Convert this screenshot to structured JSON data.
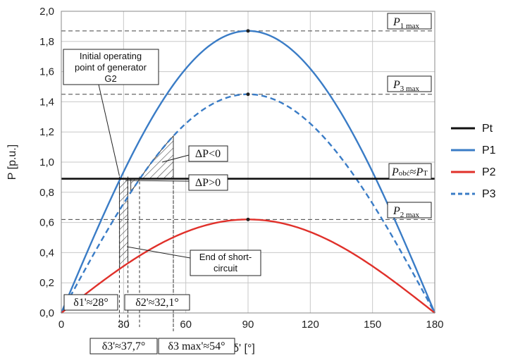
{
  "chart_data": {
    "type": "line",
    "xlabel": "δ' [°]",
    "ylabel": "P [p.u.]",
    "xlim": [
      0,
      180
    ],
    "ylim": [
      0,
      2.0
    ],
    "x_ticks": [
      "0",
      "30",
      "60",
      "90",
      "120",
      "150",
      "180"
    ],
    "y_ticks": [
      "0,0",
      "0,2",
      "0,4",
      "0,6",
      "0,8",
      "1,0",
      "1,2",
      "1,4",
      "1,6",
      "1,8",
      "2,0"
    ],
    "grid": true,
    "legend_position": "right",
    "series": [
      {
        "name": "Pt",
        "type": "constant",
        "value": 0.89,
        "color": "#111111",
        "dash": "solid"
      },
      {
        "name": "P1",
        "type": "sine",
        "amplitude": 1.87,
        "color": "#3a7cc6",
        "dash": "solid"
      },
      {
        "name": "P2",
        "type": "sine",
        "amplitude": 0.62,
        "color": "#e0302a",
        "dash": "solid"
      },
      {
        "name": "P3",
        "type": "sine",
        "amplitude": 1.45,
        "color": "#3a7cc6",
        "dash": "dashed"
      }
    ],
    "reference_levels": [
      {
        "label_main": "P",
        "label_sub": "1 max",
        "value": 1.87
      },
      {
        "label_main": "P",
        "label_sub": "3 max",
        "value": 1.45
      },
      {
        "label_main": "P",
        "label_sub": "2 max",
        "value": 0.62
      }
    ],
    "pt_label": {
      "main1": "P",
      "sub1": "obć",
      "mid": "≈",
      "main2": "P",
      "sub2": "T"
    },
    "angles": {
      "delta1": 28,
      "delta2": 32.1,
      "delta3": 37.7,
      "delta3max": 54
    },
    "annotations": {
      "initial_point": [
        "Initial operating",
        "point of generator",
        "G2"
      ],
      "end_short_circuit": [
        "End of short-",
        "circuit"
      ],
      "dP_neg": "ΔP<0",
      "dP_pos": "ΔP>0",
      "delta1_label": "δ1'≈28°",
      "delta2_label": "δ2'≈32,1°",
      "delta3_label": "δ3'≈37,7°",
      "delta3max_label": "δ3 max'≈54°"
    }
  }
}
